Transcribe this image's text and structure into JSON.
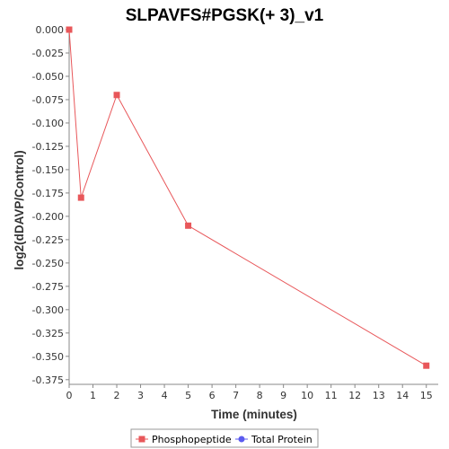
{
  "chart_data": {
    "type": "line",
    "title": "SLPAVFS#PGSK(+ 3)_v1",
    "xlabel": "Time (minutes)",
    "ylabel": "log2(dDAVP/Control)",
    "xlim": [
      0,
      15.5
    ],
    "ylim": [
      -0.38,
      0.0
    ],
    "x_ticks": [
      "0",
      "1",
      "2",
      "3",
      "4",
      "5",
      "6",
      "7",
      "8",
      "9",
      "10",
      "11",
      "12",
      "13",
      "14",
      "15"
    ],
    "y_ticks": [
      "0.000",
      "-0.025",
      "-0.050",
      "-0.075",
      "-0.100",
      "-0.125",
      "-0.150",
      "-0.175",
      "-0.200",
      "-0.225",
      "-0.250",
      "-0.275",
      "-0.300",
      "-0.325",
      "-0.350",
      "-0.375"
    ],
    "grid": false,
    "legend_position": "bottom",
    "series": [
      {
        "name": "Phosphopeptide",
        "color": "#e8575a",
        "marker": "square",
        "x": [
          0,
          0.5,
          2,
          5,
          15
        ],
        "y": [
          0.0,
          -0.18,
          -0.07,
          -0.21,
          -0.36
        ]
      },
      {
        "name": "Total Protein",
        "color": "#5b5bef",
        "marker": "circle",
        "x": [],
        "y": []
      }
    ]
  }
}
